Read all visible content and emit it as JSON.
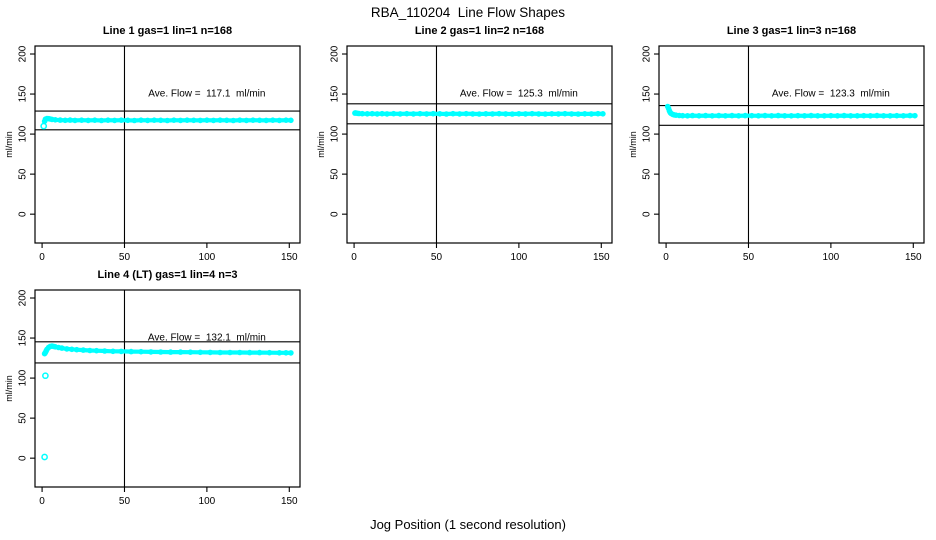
{
  "figure": {
    "title": "RBA_110204  Line Flow Shapes",
    "xlabel": "Jog Position (1 second resolution)",
    "colors": {
      "points": "#00ffff",
      "axis": "#000000",
      "text": "#000000",
      "background": "#ffffff"
    }
  },
  "chart_data": [
    {
      "type": "scatter",
      "title": "Line 1 gas=1 lin=1 n=168",
      "grid": {
        "row": 0,
        "col": 0
      },
      "ylabel": "ml/min",
      "ave_flow": 117.1,
      "ave_flow_text": "Ave. Flow =  117.1  ml/min",
      "ave_text_pos": {
        "x": 100,
        "y": 150
      },
      "xlim": [
        -4.3,
        156.5
      ],
      "ylim": [
        -36,
        210
      ],
      "x_ticks": [
        0,
        50,
        100,
        150
      ],
      "y_ticks": [
        0,
        50,
        100,
        150,
        200
      ],
      "vline_x": 50,
      "hlines": [
        128.8,
        105.4
      ],
      "band": [
        [
          1.5,
          116.0
        ],
        [
          2,
          118.6
        ],
        [
          3,
          119.4
        ],
        [
          4,
          119.2
        ],
        [
          5,
          118.8
        ],
        [
          6,
          118.4
        ],
        [
          8,
          117.9
        ],
        [
          11,
          117.5
        ],
        [
          14,
          117.2
        ],
        [
          17,
          117.5
        ],
        [
          20,
          117.1
        ],
        [
          24,
          117.4
        ],
        [
          28,
          117.1
        ],
        [
          32,
          117.4
        ],
        [
          36,
          117.0
        ],
        [
          40,
          117.3
        ],
        [
          44,
          117.1
        ],
        [
          48,
          117.4
        ],
        [
          52,
          117.2
        ],
        [
          56,
          117.0
        ],
        [
          60,
          117.3
        ],
        [
          64,
          117.1
        ],
        [
          68,
          117.4
        ],
        [
          72,
          117.2
        ],
        [
          76,
          117.0
        ],
        [
          80,
          117.3
        ],
        [
          84,
          117.1
        ],
        [
          88,
          117.4
        ],
        [
          92,
          117.2
        ],
        [
          96,
          117.1
        ],
        [
          100,
          117.3
        ],
        [
          104,
          117.1
        ],
        [
          108,
          117.4
        ],
        [
          112,
          117.2
        ],
        [
          116,
          117.0
        ],
        [
          120,
          117.3
        ],
        [
          124,
          117.1
        ],
        [
          128,
          117.4
        ],
        [
          132,
          117.2
        ],
        [
          136,
          117.1
        ],
        [
          140,
          117.3
        ],
        [
          144,
          117.1
        ],
        [
          148,
          117.4
        ],
        [
          151,
          117.2
        ]
      ],
      "outliers": [
        [
          1,
          110
        ]
      ]
    },
    {
      "type": "scatter",
      "title": "Line 2 gas=1 lin=2 n=168",
      "grid": {
        "row": 0,
        "col": 1
      },
      "ylabel": "ml/min",
      "ave_flow": 125.3,
      "ave_flow_text": "Ave. Flow =  125.3  ml/min",
      "ave_text_pos": {
        "x": 100,
        "y": 150
      },
      "xlim": [
        -4.3,
        156.5
      ],
      "ylim": [
        -36,
        210
      ],
      "x_ticks": [
        0,
        50,
        100,
        150
      ],
      "y_ticks": [
        0,
        50,
        100,
        150,
        200
      ],
      "vline_x": 50,
      "hlines": [
        137.8,
        112.8
      ],
      "band": [
        [
          0.5,
          126.2
        ],
        [
          1,
          126.4
        ],
        [
          2,
          126.0
        ],
        [
          3,
          125.7
        ],
        [
          5,
          125.5
        ],
        [
          8,
          125.3
        ],
        [
          11,
          125.5
        ],
        [
          14,
          125.2
        ],
        [
          17,
          125.4
        ],
        [
          20,
          125.2
        ],
        [
          24,
          125.4
        ],
        [
          28,
          125.2
        ],
        [
          32,
          125.4
        ],
        [
          36,
          125.2
        ],
        [
          40,
          125.4
        ],
        [
          44,
          125.2
        ],
        [
          48,
          125.4
        ],
        [
          52,
          125.3
        ],
        [
          56,
          125.1
        ],
        [
          60,
          125.4
        ],
        [
          64,
          125.2
        ],
        [
          68,
          125.4
        ],
        [
          72,
          125.2
        ],
        [
          76,
          125.1
        ],
        [
          80,
          125.3
        ],
        [
          84,
          125.2
        ],
        [
          88,
          125.4
        ],
        [
          92,
          125.2
        ],
        [
          96,
          125.1
        ],
        [
          100,
          125.3
        ],
        [
          104,
          125.2
        ],
        [
          108,
          125.4
        ],
        [
          112,
          125.2
        ],
        [
          116,
          125.1
        ],
        [
          120,
          125.3
        ],
        [
          124,
          125.2
        ],
        [
          128,
          125.4
        ],
        [
          132,
          125.2
        ],
        [
          136,
          125.1
        ],
        [
          140,
          125.3
        ],
        [
          144,
          125.2
        ],
        [
          148,
          125.4
        ],
        [
          151,
          125.3
        ]
      ],
      "outliers": []
    },
    {
      "type": "scatter",
      "title": "Line 3 gas=1 lin=3 n=168",
      "grid": {
        "row": 0,
        "col": 2
      },
      "ylabel": "ml/min",
      "ave_flow": 123.3,
      "ave_flow_text": "Ave. Flow =  123.3  ml/min",
      "ave_text_pos": {
        "x": 100,
        "y": 150
      },
      "xlim": [
        -4.3,
        156.5
      ],
      "ylim": [
        -36,
        210
      ],
      "x_ticks": [
        0,
        50,
        100,
        150
      ],
      "y_ticks": [
        0,
        50,
        100,
        150,
        200
      ],
      "vline_x": 50,
      "hlines": [
        135.6,
        111.0
      ],
      "band": [
        [
          1,
          134.5
        ],
        [
          1.5,
          132.0
        ],
        [
          2,
          129.0
        ],
        [
          2.5,
          127.0
        ],
        [
          3,
          125.8
        ],
        [
          4,
          124.6
        ],
        [
          5,
          124.0
        ],
        [
          6,
          123.6
        ],
        [
          8,
          123.2
        ],
        [
          10,
          123.0
        ],
        [
          13,
          122.9
        ],
        [
          16,
          123.1
        ],
        [
          20,
          122.9
        ],
        [
          24,
          123.1
        ],
        [
          28,
          122.9
        ],
        [
          32,
          123.1
        ],
        [
          36,
          122.9
        ],
        [
          40,
          123.1
        ],
        [
          44,
          122.9
        ],
        [
          48,
          123.1
        ],
        [
          52,
          123.0
        ],
        [
          56,
          122.8
        ],
        [
          60,
          123.1
        ],
        [
          64,
          122.9
        ],
        [
          68,
          123.1
        ],
        [
          72,
          122.9
        ],
        [
          76,
          122.8
        ],
        [
          80,
          123.0
        ],
        [
          84,
          122.9
        ],
        [
          88,
          123.1
        ],
        [
          92,
          122.9
        ],
        [
          96,
          122.8
        ],
        [
          100,
          123.0
        ],
        [
          104,
          122.9
        ],
        [
          108,
          123.1
        ],
        [
          112,
          122.9
        ],
        [
          116,
          122.8
        ],
        [
          120,
          123.0
        ],
        [
          124,
          122.9
        ],
        [
          128,
          123.1
        ],
        [
          132,
          122.9
        ],
        [
          136,
          122.8
        ],
        [
          140,
          123.0
        ],
        [
          144,
          122.9
        ],
        [
          148,
          123.1
        ],
        [
          151,
          123.0
        ]
      ],
      "outliers": []
    },
    {
      "type": "scatter",
      "title": "Line 4 (LT) gas=1 lin=4 n=3",
      "grid": {
        "row": 1,
        "col": 0
      },
      "ylabel": "ml/min",
      "ave_flow": 132.1,
      "ave_flow_text": "Ave. Flow =  132.1  ml/min",
      "ave_text_pos": {
        "x": 100,
        "y": 150
      },
      "xlim": [
        -4.3,
        156.5
      ],
      "ylim": [
        -36,
        210
      ],
      "x_ticks": [
        0,
        50,
        100,
        150
      ],
      "y_ticks": [
        0,
        50,
        100,
        150,
        200
      ],
      "vline_x": 50,
      "hlines": [
        145.3,
        118.9
      ],
      "band": [
        [
          1.5,
          130.5
        ],
        [
          2,
          132.0
        ],
        [
          2.5,
          134.0
        ],
        [
          3,
          136.0
        ],
        [
          4,
          138.3
        ],
        [
          5,
          139.6
        ],
        [
          6,
          140.0
        ],
        [
          7,
          139.6
        ],
        [
          8,
          139.1
        ],
        [
          10,
          138.2
        ],
        [
          12,
          137.4
        ],
        [
          15,
          136.5
        ],
        [
          18,
          135.9
        ],
        [
          21,
          135.4
        ],
        [
          25,
          134.9
        ],
        [
          29,
          134.5
        ],
        [
          33,
          134.2
        ],
        [
          38,
          133.8
        ],
        [
          43,
          133.5
        ],
        [
          48,
          133.3
        ],
        [
          54,
          133.1
        ],
        [
          60,
          132.9
        ],
        [
          66,
          132.7
        ],
        [
          72,
          132.6
        ],
        [
          78,
          132.5
        ],
        [
          84,
          132.4
        ],
        [
          90,
          132.3
        ],
        [
          96,
          132.2
        ],
        [
          102,
          132.1
        ],
        [
          108,
          132.0
        ],
        [
          114,
          131.9
        ],
        [
          120,
          131.9
        ],
        [
          126,
          131.8
        ],
        [
          132,
          131.8
        ],
        [
          138,
          131.7
        ],
        [
          144,
          131.6
        ],
        [
          148,
          131.6
        ],
        [
          151,
          131.5
        ]
      ],
      "outliers": [
        [
          2,
          103
        ],
        [
          1.5,
          1.5
        ]
      ]
    }
  ]
}
